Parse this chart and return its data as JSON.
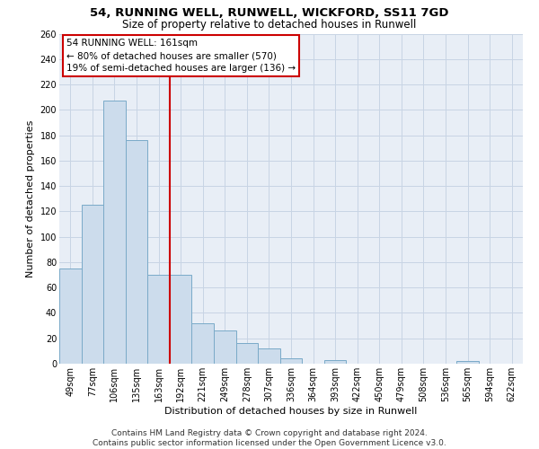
{
  "title": "54, RUNNING WELL, RUNWELL, WICKFORD, SS11 7GD",
  "subtitle": "Size of property relative to detached houses in Runwell",
  "xlabel": "Distribution of detached houses by size in Runwell",
  "ylabel": "Number of detached properties",
  "categories": [
    "49sqm",
    "77sqm",
    "106sqm",
    "135sqm",
    "163sqm",
    "192sqm",
    "221sqm",
    "249sqm",
    "278sqm",
    "307sqm",
    "336sqm",
    "364sqm",
    "393sqm",
    "422sqm",
    "450sqm",
    "479sqm",
    "508sqm",
    "536sqm",
    "565sqm",
    "594sqm",
    "622sqm"
  ],
  "values": [
    75,
    125,
    207,
    176,
    70,
    70,
    32,
    26,
    16,
    12,
    4,
    0,
    3,
    0,
    0,
    0,
    0,
    0,
    2,
    0,
    0
  ],
  "bar_color": "#ccdcec",
  "bar_edge_color": "#7aaac8",
  "vline_pos": 4.5,
  "annotation_line1": "54 RUNNING WELL: 161sqm",
  "annotation_line2": "← 80% of detached houses are smaller (570)",
  "annotation_line3": "19% of semi-detached houses are larger (136) →",
  "annotation_box_color": "#ffffff",
  "annotation_box_edge": "#cc0000",
  "vline_color": "#cc0000",
  "ylim": [
    0,
    260
  ],
  "yticks": [
    0,
    20,
    40,
    60,
    80,
    100,
    120,
    140,
    160,
    180,
    200,
    220,
    240,
    260
  ],
  "grid_color": "#c8d4e4",
  "background_color": "#e8eef6",
  "footer": "Contains HM Land Registry data © Crown copyright and database right 2024.\nContains public sector information licensed under the Open Government Licence v3.0.",
  "title_fontsize": 9.5,
  "subtitle_fontsize": 8.5,
  "xlabel_fontsize": 8,
  "ylabel_fontsize": 8,
  "tick_fontsize": 7,
  "footer_fontsize": 6.5,
  "annotation_fontsize": 7.5
}
